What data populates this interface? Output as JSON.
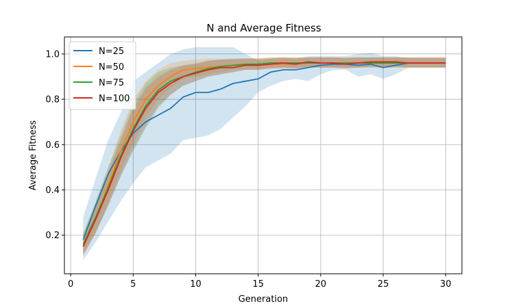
{
  "chart_data": {
    "type": "line",
    "title": "N and Average Fitness",
    "xlabel": "Generation",
    "ylabel": "Average Fitness",
    "xlim": [
      -0.5,
      31.3
    ],
    "ylim": [
      0.03,
      1.075
    ],
    "xticks": [
      0,
      5,
      10,
      15,
      20,
      25,
      30
    ],
    "yticks": [
      0.2,
      0.4,
      0.6,
      0.8,
      1.0
    ],
    "xtick_labels": [
      "0",
      "5",
      "10",
      "15",
      "20",
      "25",
      "30"
    ],
    "ytick_labels": [
      "0.2",
      "0.4",
      "0.6",
      "0.8",
      "1.0"
    ],
    "grid": true,
    "legend_position": "upper-left",
    "band_opacity": 0.2,
    "x": [
      1,
      2,
      3,
      4,
      5,
      6,
      7,
      8,
      9,
      10,
      11,
      12,
      13,
      14,
      15,
      16,
      17,
      18,
      19,
      20,
      21,
      22,
      23,
      24,
      25,
      26,
      27,
      28,
      29,
      30
    ],
    "series": [
      {
        "name": "N=25",
        "color": "#1f77b4",
        "values": [
          0.18,
          0.33,
          0.47,
          0.57,
          0.65,
          0.7,
          0.73,
          0.76,
          0.81,
          0.83,
          0.83,
          0.845,
          0.87,
          0.88,
          0.89,
          0.92,
          0.93,
          0.93,
          0.94,
          0.95,
          0.955,
          0.955,
          0.95,
          0.955,
          0.94,
          0.95,
          0.96,
          0.96,
          0.96,
          0.96
        ],
        "lower": [
          0.09,
          0.17,
          0.26,
          0.35,
          0.43,
          0.5,
          0.53,
          0.56,
          0.62,
          0.63,
          0.64,
          0.67,
          0.72,
          0.77,
          0.83,
          0.86,
          0.88,
          0.89,
          0.88,
          0.91,
          0.93,
          0.93,
          0.9,
          0.91,
          0.89,
          0.91,
          0.94,
          0.94,
          0.94,
          0.94
        ],
        "upper": [
          0.28,
          0.45,
          0.62,
          0.74,
          0.88,
          0.92,
          0.96,
          1.0,
          1.02,
          1.03,
          1.03,
          1.03,
          1.03,
          1.0,
          0.97,
          0.98,
          0.98,
          0.98,
          0.99,
          0.99,
          0.99,
          0.99,
          1.0,
          1.005,
          0.99,
          0.99,
          0.98,
          0.98,
          0.98,
          0.98
        ]
      },
      {
        "name": "N=50",
        "color": "#ff7f0e",
        "values": [
          0.15,
          0.27,
          0.42,
          0.57,
          0.7,
          0.8,
          0.86,
          0.9,
          0.93,
          0.935,
          0.94,
          0.945,
          0.95,
          0.95,
          0.95,
          0.955,
          0.955,
          0.955,
          0.96,
          0.96,
          0.96,
          0.96,
          0.96,
          0.96,
          0.96,
          0.96,
          0.96,
          0.96,
          0.96,
          0.96
        ],
        "lower": [
          0.11,
          0.21,
          0.34,
          0.48,
          0.6,
          0.72,
          0.8,
          0.85,
          0.89,
          0.9,
          0.91,
          0.92,
          0.93,
          0.93,
          0.93,
          0.935,
          0.935,
          0.935,
          0.94,
          0.94,
          0.94,
          0.94,
          0.94,
          0.94,
          0.94,
          0.94,
          0.94,
          0.94,
          0.94,
          0.94
        ],
        "upper": [
          0.2,
          0.34,
          0.5,
          0.66,
          0.8,
          0.88,
          0.93,
          0.96,
          0.97,
          0.975,
          0.98,
          0.98,
          0.98,
          0.98,
          0.98,
          0.985,
          0.985,
          0.985,
          0.985,
          0.985,
          0.985,
          0.985,
          0.985,
          0.985,
          0.985,
          0.985,
          0.985,
          0.985,
          0.985,
          0.985
        ]
      },
      {
        "name": "N=75",
        "color": "#2ca02c",
        "values": [
          0.16,
          0.28,
          0.41,
          0.55,
          0.67,
          0.77,
          0.84,
          0.88,
          0.9,
          0.92,
          0.935,
          0.945,
          0.95,
          0.955,
          0.955,
          0.96,
          0.96,
          0.96,
          0.96,
          0.96,
          0.96,
          0.96,
          0.96,
          0.96,
          0.96,
          0.96,
          0.96,
          0.96,
          0.96,
          0.96
        ],
        "lower": [
          0.12,
          0.21,
          0.33,
          0.46,
          0.57,
          0.67,
          0.76,
          0.82,
          0.86,
          0.88,
          0.9,
          0.91,
          0.92,
          0.93,
          0.93,
          0.94,
          0.94,
          0.94,
          0.94,
          0.94,
          0.94,
          0.94,
          0.94,
          0.94,
          0.94,
          0.94,
          0.94,
          0.94,
          0.94,
          0.94
        ],
        "upper": [
          0.21,
          0.35,
          0.5,
          0.64,
          0.78,
          0.87,
          0.92,
          0.94,
          0.95,
          0.96,
          0.97,
          0.975,
          0.98,
          0.98,
          0.98,
          0.985,
          0.985,
          0.985,
          0.985,
          0.985,
          0.985,
          0.985,
          0.985,
          0.985,
          0.985,
          0.985,
          0.985,
          0.985,
          0.985,
          0.985
        ]
      },
      {
        "name": "N=100",
        "color": "#d62728",
        "values": [
          0.15,
          0.27,
          0.4,
          0.54,
          0.66,
          0.76,
          0.83,
          0.87,
          0.9,
          0.915,
          0.93,
          0.94,
          0.94,
          0.95,
          0.95,
          0.955,
          0.96,
          0.955,
          0.965,
          0.96,
          0.96,
          0.955,
          0.96,
          0.965,
          0.965,
          0.965,
          0.96,
          0.96,
          0.96,
          0.96
        ],
        "lower": [
          0.11,
          0.21,
          0.33,
          0.46,
          0.58,
          0.68,
          0.77,
          0.82,
          0.86,
          0.88,
          0.9,
          0.91,
          0.92,
          0.93,
          0.93,
          0.935,
          0.94,
          0.935,
          0.945,
          0.94,
          0.94,
          0.935,
          0.94,
          0.945,
          0.945,
          0.945,
          0.94,
          0.94,
          0.94,
          0.94
        ],
        "upper": [
          0.2,
          0.34,
          0.48,
          0.62,
          0.76,
          0.85,
          0.9,
          0.93,
          0.95,
          0.955,
          0.97,
          0.975,
          0.975,
          0.98,
          0.98,
          0.98,
          0.985,
          0.98,
          0.985,
          0.985,
          0.985,
          0.98,
          0.985,
          0.985,
          0.985,
          0.985,
          0.985,
          0.985,
          0.985,
          0.985
        ]
      }
    ]
  }
}
